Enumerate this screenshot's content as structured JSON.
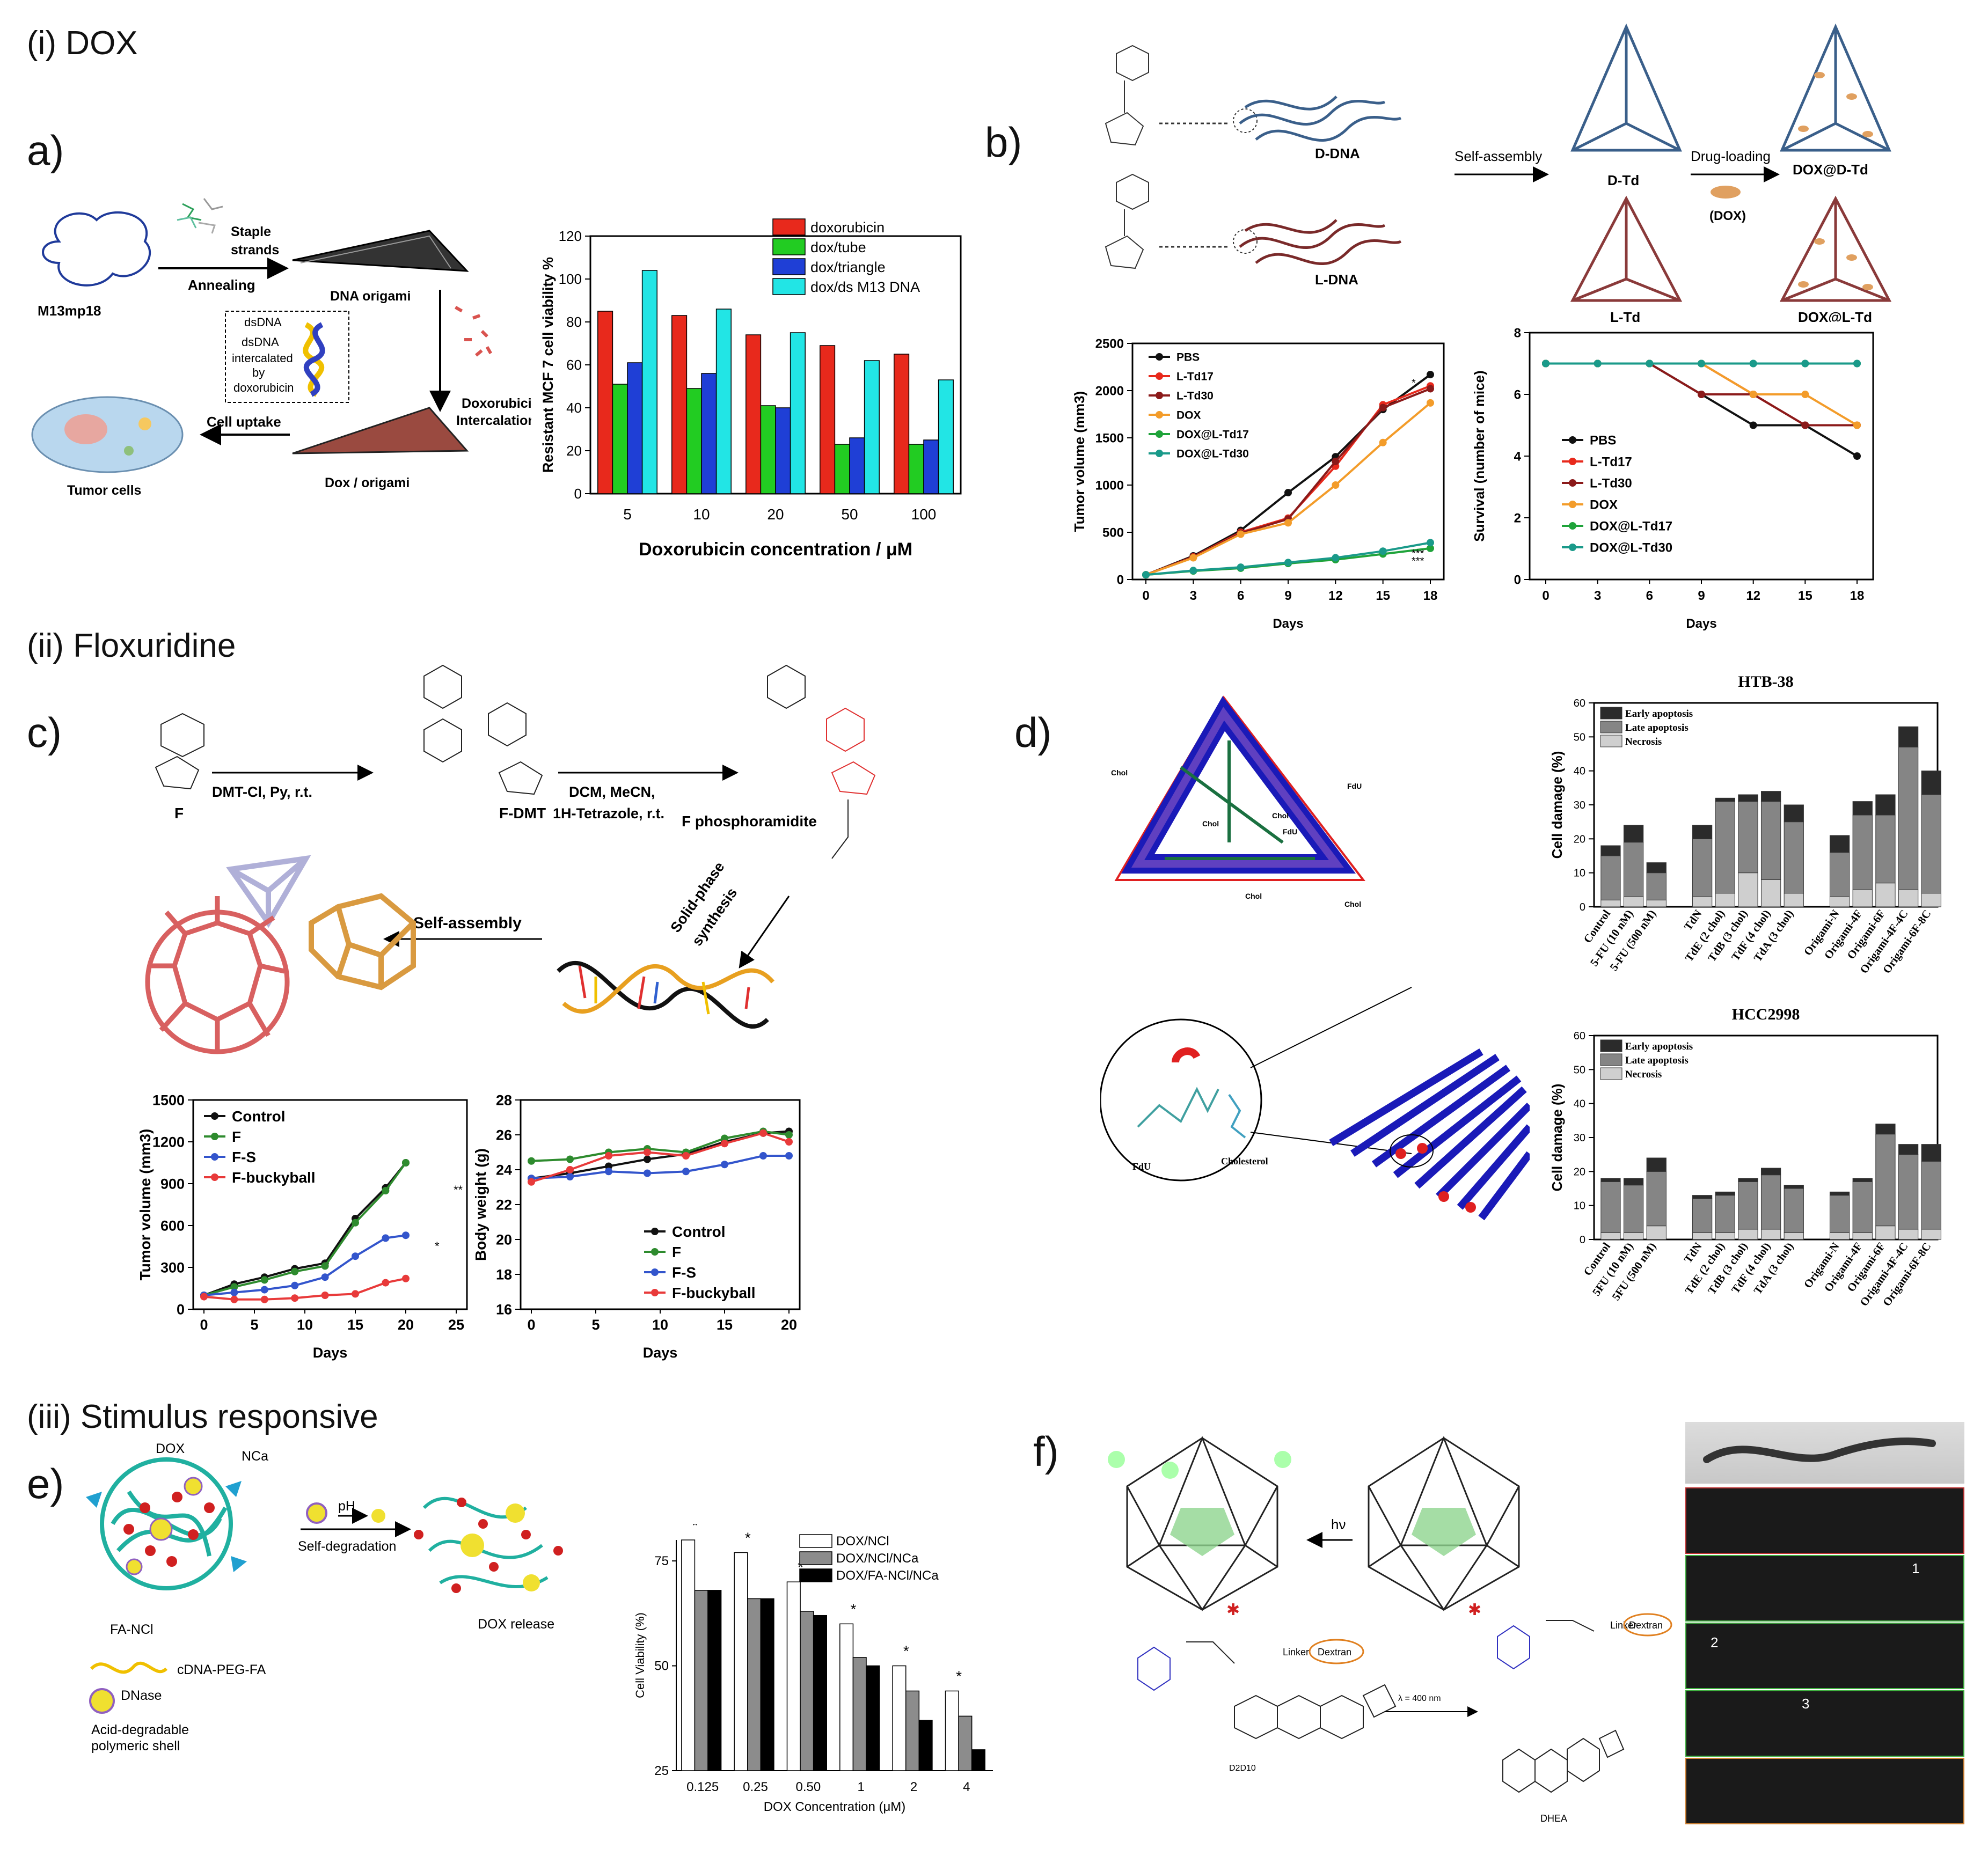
{
  "sections": {
    "dox": "(i) DOX",
    "floxuridine": "(ii) Floxuridine",
    "stimulus": "(iii) Stimulus responsive"
  },
  "panel_labels": {
    "a": "a)",
    "b": "b)",
    "c": "c)",
    "d": "d)",
    "e": "e)",
    "f": "f)"
  },
  "a_schematic": {
    "m13": "M13mp18",
    "staple1": "Staple",
    "staple2": "strands",
    "annealing": "Annealing",
    "origami": "DNA origami",
    "dsdna": "dsDNA",
    "inter1": "dsDNA",
    "inter2": "intercalated",
    "inter3": "by",
    "inter4": "doxorubicin",
    "dox_inter1": "Doxorubicin",
    "dox_inter2": "Intercalation",
    "uptake": "Cell uptake",
    "tumor": "Tumor cells",
    "doxorigami": "Dox / origami"
  },
  "b_schematic": {
    "ddna": "D-DNA",
    "ldna": "L-DNA",
    "selfassembly": "Self-assembly",
    "dtd": "D-Td",
    "ltd": "L-Td",
    "drugloading": "Drug-loading",
    "dox": "(DOX)",
    "doxdtd": "DOX@D-Td",
    "doxltd": "DOX@L-Td"
  },
  "c_schematic": {
    "F": "F",
    "FDMT": "F-DMT",
    "step1": "DMT-Cl, Py, r.t.",
    "step2a": "DCM, MeCN,",
    "step2b": "1H-Tetrazole, r.t.",
    "fphos": "F phosphoramidite",
    "solid1": "Solid-phase",
    "solid2": "synthesis",
    "selfassembly": "Self-assembly"
  },
  "d_schematic": {
    "chol": "Chol",
    "fdu": "FdU",
    "cholesterol": "Cholesterol"
  },
  "e_schematic": {
    "dox": "DOX",
    "nca": "NCa",
    "fanci": "FA-NCl",
    "ph": "pH",
    "selfdeg": "Self-degradation",
    "release": "DOX release",
    "cdna": "cDNA-PEG-FA",
    "dnase": "DNase",
    "shell1": "Acid-degradable",
    "shell2": "polymeric shell"
  },
  "f_schematic": {
    "hv": "hν",
    "linker1": "Linker",
    "dextran1": "Dextran",
    "wavelength": "λ = 400 nm",
    "linker2": "Linker",
    "dextran2": "Dextran",
    "dhea": "DHEA",
    "dsub": "D2D10",
    "arrow1": "1",
    "arrow2": "2",
    "arrow3": "3"
  },
  "chart_data": [
    {
      "id": "a-bar",
      "type": "bar",
      "categories": [
        "5",
        "10",
        "20",
        "50",
        "100"
      ],
      "series": [
        {
          "name": "doxorubicin",
          "color": "#e8291c",
          "values": [
            85,
            83,
            74,
            69,
            65
          ]
        },
        {
          "name": "dox/tube",
          "color": "#22cc22",
          "values": [
            51,
            49,
            41,
            23,
            23
          ]
        },
        {
          "name": "dox/triangle",
          "color": "#1f3fd6",
          "values": [
            61,
            56,
            40,
            26,
            25
          ]
        },
        {
          "name": "dox/ds M13 DNA",
          "color": "#22e5e5",
          "values": [
            104,
            86,
            75,
            62,
            53
          ]
        }
      ],
      "xlabel": "Doxorubicin concentration  / μM",
      "ylabel": "Resistant MCF 7 cell viability  %",
      "ylim": [
        0,
        120
      ],
      "yticks": [
        "0",
        "20",
        "40",
        "60",
        "80",
        "100",
        "120"
      ]
    },
    {
      "id": "b-tumor",
      "type": "line",
      "x": [
        0,
        3,
        6,
        9,
        12,
        15,
        18
      ],
      "series": [
        {
          "name": "PBS",
          "color": "#111111",
          "values": [
            50,
            250,
            520,
            920,
            1300,
            1800,
            2170
          ]
        },
        {
          "name": "L-Td17",
          "color": "#e8291c",
          "values": [
            50,
            240,
            500,
            650,
            1200,
            1850,
            2050
          ]
        },
        {
          "name": "L-Td30",
          "color": "#8b1a1a",
          "values": [
            50,
            235,
            490,
            640,
            1250,
            1820,
            2020
          ]
        },
        {
          "name": "DOX",
          "color": "#f39c2a",
          "values": [
            50,
            230,
            480,
            600,
            1000,
            1450,
            1870
          ]
        },
        {
          "name": "DOX@L-Td17",
          "color": "#1fa33a",
          "values": [
            50,
            90,
            120,
            170,
            210,
            270,
            330
          ]
        },
        {
          "name": "DOX@L-Td30",
          "color": "#1a9a8a",
          "values": [
            50,
            95,
            130,
            180,
            230,
            300,
            390
          ]
        }
      ],
      "xlabel": "Days",
      "ylabel": "Tumor volume (mm3)",
      "ylim": [
        0,
        2500
      ],
      "yticks": [
        "0",
        "500",
        "1000",
        "1500",
        "2000",
        "2500"
      ],
      "annotations": [
        "*",
        "***",
        "***"
      ]
    },
    {
      "id": "b-survival",
      "type": "line",
      "x": [
        0,
        3,
        6,
        9,
        12,
        15,
        18
      ],
      "series": [
        {
          "name": "PBS",
          "color": "#111111",
          "values": [
            7,
            7,
            7,
            6,
            5,
            5,
            4
          ]
        },
        {
          "name": "L-Td17",
          "color": "#e8291c",
          "values": [
            7,
            7,
            7,
            7,
            6,
            5,
            5
          ]
        },
        {
          "name": "L-Td30",
          "color": "#8b1a1a",
          "values": [
            7,
            7,
            7,
            6,
            6,
            5,
            5
          ]
        },
        {
          "name": "DOX",
          "color": "#f39c2a",
          "values": [
            7,
            7,
            7,
            7,
            6,
            6,
            5
          ]
        },
        {
          "name": "DOX@L-Td17",
          "color": "#1fa33a",
          "values": [
            7,
            7,
            7,
            7,
            7,
            7,
            7
          ]
        },
        {
          "name": "DOX@L-Td30",
          "color": "#1a9a8a",
          "values": [
            7,
            7,
            7,
            7,
            7,
            7,
            7
          ]
        }
      ],
      "xlabel": "Days",
      "ylabel": "Survival (number of mice)",
      "ylim": [
        0,
        8
      ],
      "yticks": [
        "0",
        "2",
        "4",
        "6",
        "8"
      ]
    },
    {
      "id": "c-tumor",
      "type": "line",
      "x": [
        0,
        3,
        6,
        9,
        12,
        15,
        18,
        20
      ],
      "series": [
        {
          "name": "Control",
          "color": "#111111",
          "values": [
            100,
            180,
            230,
            290,
            330,
            650,
            870,
            1050
          ]
        },
        {
          "name": "F",
          "color": "#2e8b2e",
          "values": [
            100,
            160,
            210,
            270,
            310,
            620,
            850,
            1050
          ]
        },
        {
          "name": "F-S",
          "color": "#3355cc",
          "values": [
            100,
            120,
            140,
            170,
            230,
            380,
            510,
            530
          ]
        },
        {
          "name": "F-buckyball",
          "color": "#e83a3a",
          "values": [
            90,
            70,
            70,
            80,
            100,
            110,
            190,
            220
          ]
        }
      ],
      "xlabel": "Days",
      "ylabel": "Tumor volume (mm3)",
      "ylim": [
        0,
        1500
      ],
      "xlim": [
        0,
        25
      ],
      "yticks": [
        "0",
        "300",
        "600",
        "900",
        "1200",
        "1500"
      ],
      "annotations": [
        "*",
        "**"
      ]
    },
    {
      "id": "c-weight",
      "type": "line",
      "x": [
        0,
        3,
        6,
        9,
        12,
        15,
        18,
        20
      ],
      "series": [
        {
          "name": "Control",
          "color": "#111111",
          "values": [
            23.5,
            23.8,
            24.2,
            24.6,
            24.9,
            25.6,
            26.1,
            26.2
          ]
        },
        {
          "name": "F",
          "color": "#2e8b2e",
          "values": [
            24.5,
            24.6,
            25.0,
            25.2,
            25.0,
            25.8,
            26.2,
            26.0
          ]
        },
        {
          "name": "F-S",
          "color": "#3355cc",
          "values": [
            23.5,
            23.6,
            23.9,
            23.8,
            23.9,
            24.3,
            24.8,
            24.8
          ]
        },
        {
          "name": "F-buckyball",
          "color": "#e83a3a",
          "values": [
            23.3,
            24.0,
            24.8,
            25.0,
            24.8,
            25.5,
            26.1,
            25.6
          ]
        }
      ],
      "xlabel": "Days",
      "ylabel": "Body weight (g)",
      "ylim": [
        16,
        28
      ],
      "yticks": [
        "16",
        "18",
        "20",
        "22",
        "24",
        "26",
        "28"
      ]
    },
    {
      "id": "d-htb38",
      "type": "bar",
      "title": "HTB-38",
      "categories": [
        "Control",
        "5-FU (10 nM)",
        "5-FU (500 nM)",
        "TdN",
        "TdE (2 chol)",
        "TdB (3 chol)",
        "TdF (4 chol)",
        "TdA (3 chol)",
        "Origami-N",
        "Origami-4F",
        "Origami-6F",
        "Origami-4F-4C",
        "Origami-6F-8C"
      ],
      "series": [
        {
          "name": "Early apoptosis",
          "color": "#2b2b2b",
          "values": [
            3,
            5,
            3,
            4,
            1,
            2,
            3,
            5,
            5,
            4,
            6,
            6,
            7
          ]
        },
        {
          "name": "Late apoptosis",
          "color": "#858585",
          "values": [
            13,
            16,
            8,
            17,
            27,
            21,
            23,
            21,
            13,
            22,
            20,
            42,
            29
          ]
        },
        {
          "name": "Necrosis",
          "color": "#cfcfcf",
          "values": [
            2,
            3,
            2,
            3,
            4,
            10,
            8,
            4,
            3,
            5,
            7,
            5,
            4
          ]
        }
      ],
      "ylabel": "Cell damage (%)",
      "ylim": [
        0,
        60
      ],
      "yticks": [
        "0",
        "10",
        "20",
        "30",
        "40",
        "50",
        "60"
      ],
      "groups": [
        3,
        5,
        5
      ]
    },
    {
      "id": "d-hcc2998",
      "type": "bar",
      "title": "HCC2998",
      "categories": [
        "Control",
        "5FU (10 nM)",
        "5FU (500 nM)",
        "TdN",
        "TdE (2 chol)",
        "TdB (3 chol)",
        "TdF (4 chol)",
        "TdA (3 chol)",
        "Origami-N",
        "Origami-4F",
        "Origami-6F",
        "Origami-4F-4C",
        "Origami-6F-8C"
      ],
      "series": [
        {
          "name": "Early apoptosis",
          "color": "#2b2b2b",
          "values": [
            1,
            2,
            4,
            1,
            1,
            1,
            2,
            1,
            1,
            1,
            3,
            3,
            5
          ]
        },
        {
          "name": "Late apoptosis",
          "color": "#858585",
          "values": [
            15,
            14,
            16,
            10,
            11,
            14,
            16,
            13,
            11,
            15,
            27,
            22,
            20
          ]
        },
        {
          "name": "Necrosis",
          "color": "#cfcfcf",
          "values": [
            2,
            2,
            4,
            2,
            2,
            3,
            3,
            2,
            2,
            2,
            4,
            3,
            3
          ]
        }
      ],
      "ylabel": "Cell damage (%)",
      "ylim": [
        0,
        60
      ],
      "yticks": [
        "0",
        "10",
        "20",
        "30",
        "40",
        "50",
        "60"
      ],
      "groups": [
        3,
        5,
        5
      ]
    },
    {
      "id": "e-bar",
      "type": "bar",
      "categories": [
        "0.125",
        "0.25",
        "0.50",
        "1",
        "2",
        "4"
      ],
      "series": [
        {
          "name": "DOX/NCl",
          "color": "#ffffff",
          "values": [
            80,
            77,
            70,
            60,
            50,
            44
          ]
        },
        {
          "name": "DOX/NCl/NCa",
          "color": "#8c8c8c",
          "values": [
            68,
            66,
            63,
            52,
            44,
            38
          ]
        },
        {
          "name": "DOX/FA-NCl/NCa",
          "color": "#000000",
          "values": [
            68,
            66,
            62,
            50,
            37,
            30
          ]
        }
      ],
      "xlabel": "DOX Concentration (μM)",
      "ylabel": "Cell Viability (%)",
      "ylim": [
        25,
        80
      ],
      "yticks": [
        "25",
        "50",
        "75"
      ],
      "annotations": [
        "*"
      ]
    }
  ]
}
